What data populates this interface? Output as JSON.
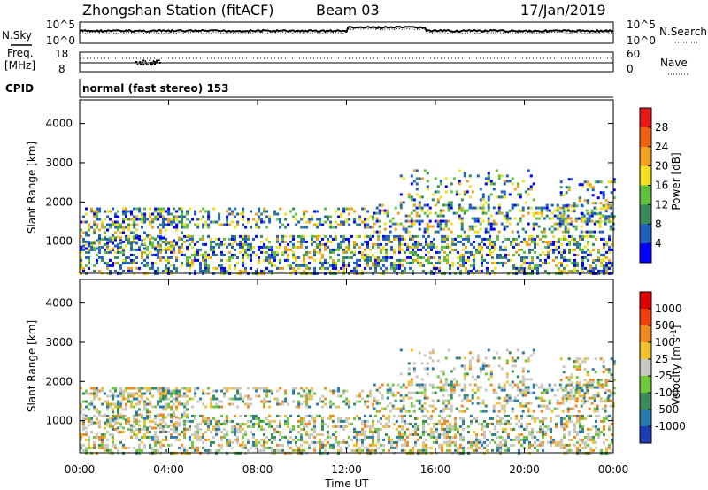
{
  "header": {
    "station": "Zhongshan Station (fitACF)",
    "beam": "Beam 03",
    "date": "17/Jan/2019"
  },
  "panels": {
    "noise": {
      "left_label": "N.Sky",
      "right_label": "N.Search",
      "left_top": "10^5",
      "left_bottom": "10^0",
      "right_top": "10^5",
      "right_bottom": "10^0"
    },
    "freq": {
      "left_label_1": "Freq.",
      "left_label_2": "[MHz]",
      "left_top": "18",
      "left_bottom": "8",
      "right_label": "Nave",
      "right_top": "60",
      "right_bottom": "0"
    },
    "cpid": {
      "label": "CPID",
      "text": "normal (fast stereo) 153"
    }
  },
  "chart_data": [
    {
      "type": "heatmap",
      "name": "power",
      "ylabel": "Slant Range [km]",
      "xlabel": "",
      "y_ticks": [
        "1000",
        "2000",
        "3000",
        "4000"
      ],
      "ylim": [
        180,
        4600
      ],
      "colorbar": {
        "label": "Power [dB]",
        "ticks": [
          "4",
          "8",
          "12",
          "16",
          "20",
          "24",
          "28"
        ],
        "colors": [
          "#0000ff",
          "#2060c0",
          "#3a8a5a",
          "#60c040",
          "#f0e020",
          "#f0a020",
          "#f06010",
          "#e81818"
        ]
      }
    },
    {
      "type": "heatmap",
      "name": "velocity",
      "ylabel": "Slant Range [km]",
      "xlabel": "Time UT",
      "x_ticks": [
        "00:00",
        "04:00",
        "08:00",
        "12:00",
        "16:00",
        "20:00",
        "00:00"
      ],
      "y_ticks": [
        "1000",
        "2000",
        "3000",
        "4000"
      ],
      "ylim": [
        180,
        4600
      ],
      "colorbar": {
        "label": "Velocity [m s^-1]",
        "ticks": [
          "1000",
          "500",
          "100",
          "25",
          "-25",
          "-100",
          "-500",
          "-1000"
        ],
        "colors": [
          "#1b3fb0",
          "#2a7ab0",
          "#3a8a5a",
          "#6ec83c",
          "#c8c8c0",
          "#f0c030",
          "#f08a20",
          "#f04010",
          "#e00000"
        ]
      }
    }
  ]
}
